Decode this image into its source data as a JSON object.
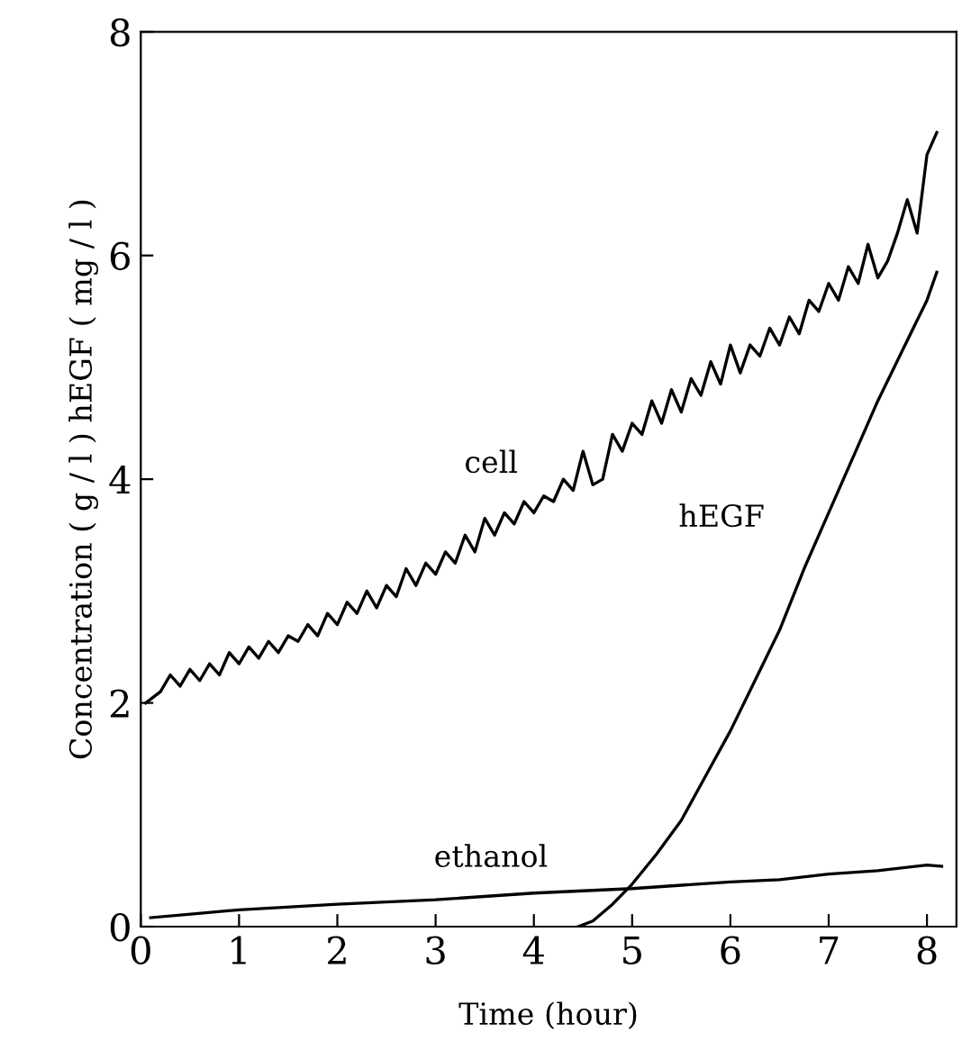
{
  "chart_data": {
    "type": "line",
    "xlabel": "Time (hour)",
    "ylabel": "Concentration ( g / l ) hEGF ( mg / l )",
    "xlim": [
      0,
      8.3
    ],
    "ylim": [
      0,
      8
    ],
    "xticks": [
      0,
      1,
      2,
      3,
      4,
      5,
      6,
      7,
      8
    ],
    "yticks": [
      0,
      2,
      4,
      6,
      8
    ],
    "grid": false,
    "legend": false,
    "marker": "none",
    "line_style": "solid",
    "series": [
      {
        "name": "cell",
        "color": "#000000",
        "x": [
          0.05,
          0.2,
          0.3,
          0.4,
          0.5,
          0.6,
          0.7,
          0.8,
          0.9,
          1.0,
          1.1,
          1.2,
          1.3,
          1.4,
          1.5,
          1.6,
          1.7,
          1.8,
          1.9,
          2.0,
          2.1,
          2.2,
          2.3,
          2.4,
          2.5,
          2.6,
          2.7,
          2.8,
          2.9,
          3.0,
          3.1,
          3.2,
          3.3,
          3.4,
          3.5,
          3.6,
          3.7,
          3.8,
          3.9,
          4.0,
          4.1,
          4.2,
          4.3,
          4.4,
          4.5,
          4.6,
          4.7,
          4.8,
          4.9,
          5.0,
          5.1,
          5.2,
          5.3,
          5.4,
          5.5,
          5.6,
          5.7,
          5.8,
          5.9,
          6.0,
          6.1,
          6.2,
          6.3,
          6.4,
          6.5,
          6.6,
          6.7,
          6.8,
          6.9,
          7.0,
          7.1,
          7.2,
          7.3,
          7.4,
          7.5,
          7.6,
          7.7,
          7.8,
          7.9,
          8.0,
          8.1
        ],
        "values": [
          2.0,
          2.1,
          2.25,
          2.15,
          2.3,
          2.2,
          2.35,
          2.25,
          2.45,
          2.35,
          2.5,
          2.4,
          2.55,
          2.45,
          2.6,
          2.55,
          2.7,
          2.6,
          2.8,
          2.7,
          2.9,
          2.8,
          3.0,
          2.85,
          3.05,
          2.95,
          3.2,
          3.05,
          3.25,
          3.15,
          3.35,
          3.25,
          3.5,
          3.35,
          3.65,
          3.5,
          3.7,
          3.6,
          3.8,
          3.7,
          3.85,
          3.8,
          4.0,
          3.9,
          4.25,
          3.95,
          4.0,
          4.4,
          4.25,
          4.5,
          4.4,
          4.7,
          4.5,
          4.8,
          4.6,
          4.9,
          4.75,
          5.05,
          4.85,
          5.2,
          4.95,
          5.2,
          5.1,
          5.35,
          5.2,
          5.45,
          5.3,
          5.6,
          5.5,
          5.75,
          5.6,
          5.9,
          5.75,
          6.1,
          5.8,
          5.95,
          6.2,
          6.5,
          6.2,
          6.9,
          7.1
        ]
      },
      {
        "name": "hEGF",
        "color": "#000000",
        "x": [
          4.45,
          4.6,
          4.8,
          5.0,
          5.25,
          5.5,
          5.75,
          6.0,
          6.25,
          6.5,
          6.75,
          7.0,
          7.25,
          7.5,
          7.75,
          8.0,
          8.1
        ],
        "values": [
          0,
          0.05,
          0.2,
          0.38,
          0.65,
          0.95,
          1.35,
          1.75,
          2.2,
          2.65,
          3.2,
          3.7,
          4.2,
          4.7,
          5.15,
          5.6,
          5.85
        ]
      },
      {
        "name": "ethanol",
        "color": "#000000",
        "x": [
          0.1,
          1.0,
          2.0,
          3.0,
          4.0,
          5.0,
          6.0,
          6.5,
          7.0,
          7.5,
          8.0,
          8.15
        ],
        "values": [
          0.08,
          0.15,
          0.2,
          0.24,
          0.3,
          0.34,
          0.4,
          0.42,
          0.47,
          0.5,
          0.55,
          0.54
        ]
      }
    ]
  }
}
